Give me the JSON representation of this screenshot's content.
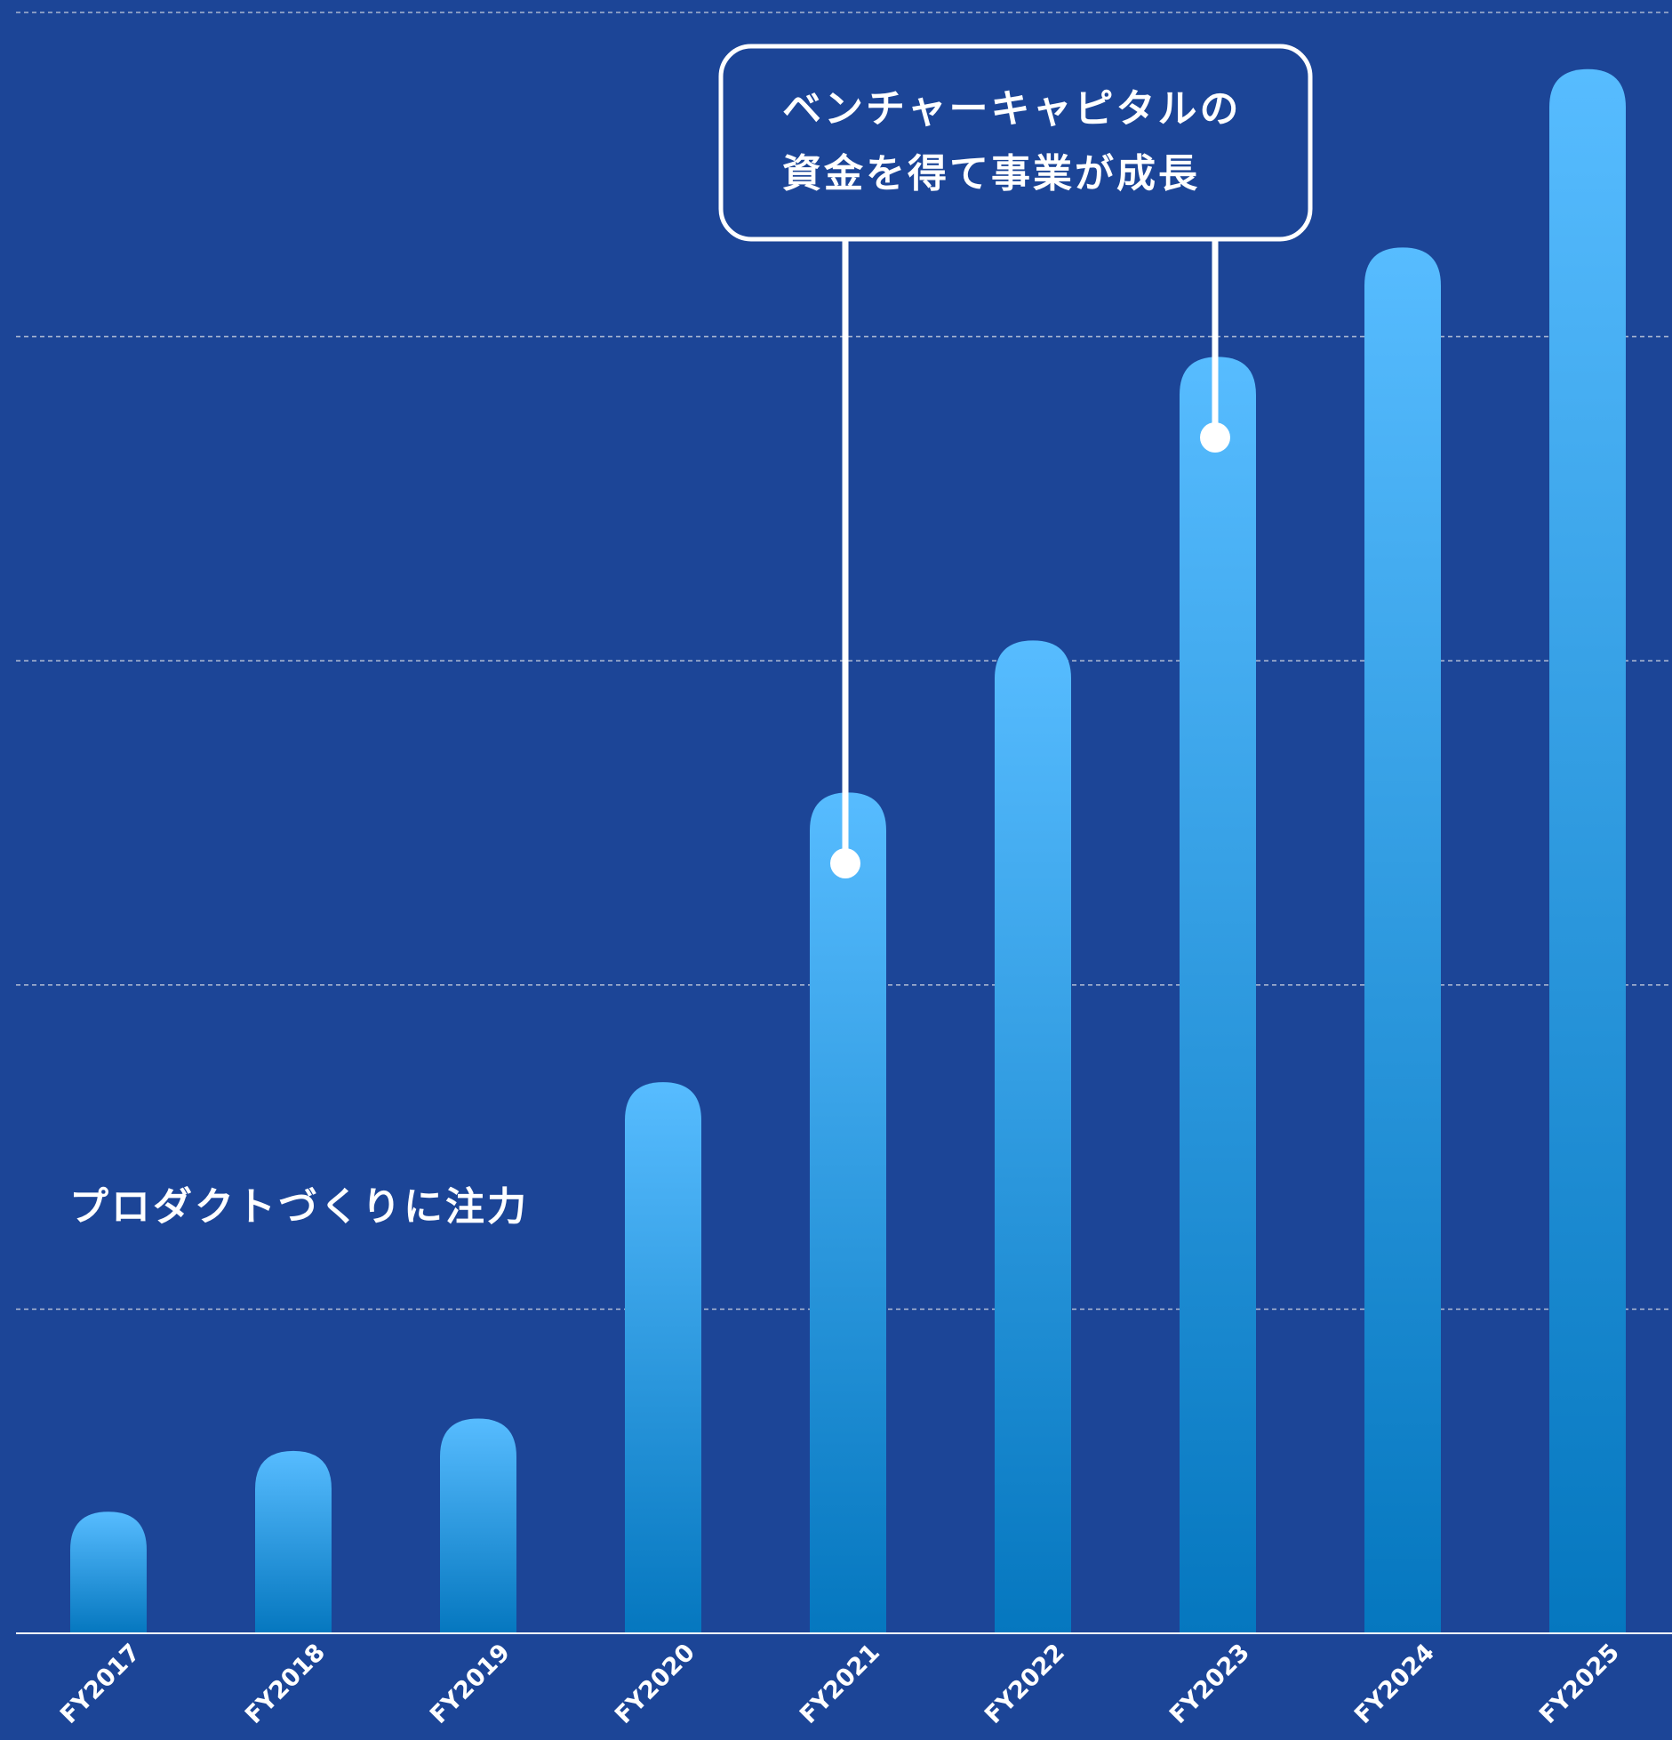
{
  "chart_data": {
    "type": "bar",
    "title": "",
    "xlabel": "",
    "ylabel": "",
    "categories": [
      "FY2017",
      "FY2018",
      "FY2019",
      "FY2020",
      "FY2021",
      "FY2022",
      "FY2023",
      "FY2024",
      "FY2025"
    ],
    "values": [
      0.6,
      0.9,
      1.06,
      2.72,
      4.15,
      4.9,
      6.3,
      6.84,
      7.72
    ],
    "ylim": [
      0,
      8
    ],
    "grid": true,
    "legend": "none",
    "annotations": {
      "early": "プロダクトづくりに注力",
      "vc_line1": "ベンチャーキャピタルの",
      "vc_line2": "資金を得て事業が成長",
      "vc_points": [
        "FY2021",
        "FY2023"
      ]
    }
  },
  "colors": {
    "background": "#1c4597",
    "bar_top": "#57bcff",
    "bar_bottom": "#0577bf",
    "grid": "#a7b4d0",
    "axis": "#ffffff",
    "text": "#ffffff"
  }
}
